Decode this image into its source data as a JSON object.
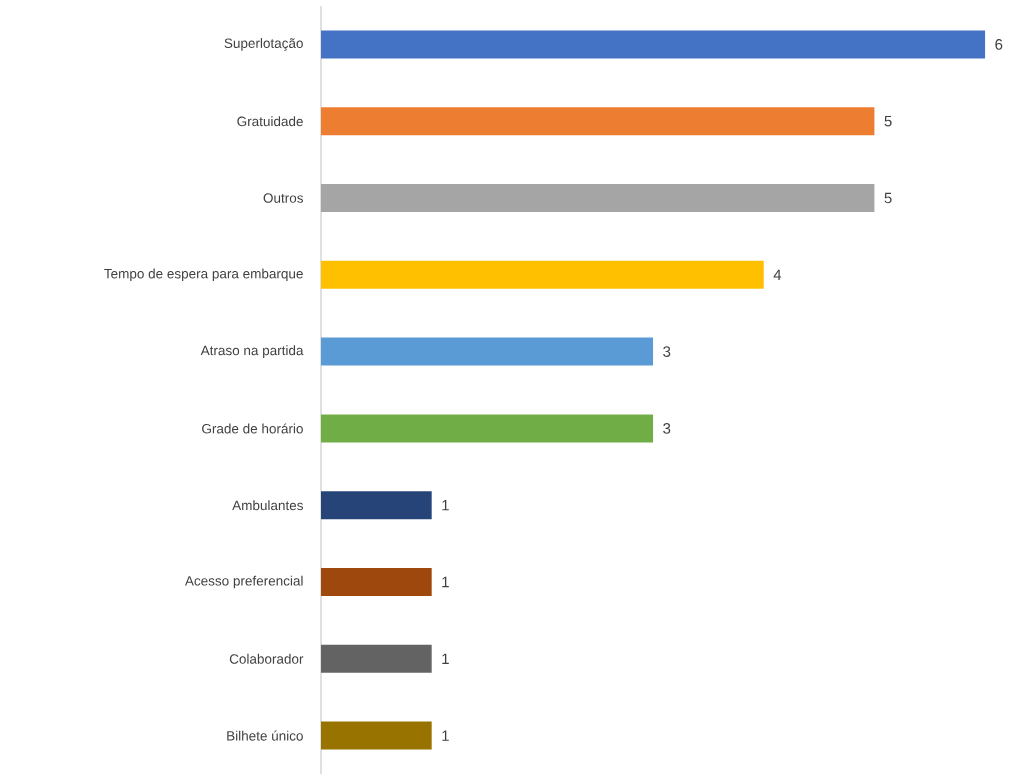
{
  "chart_data": {
    "type": "bar",
    "orientation": "horizontal",
    "categories": [
      "Superlotação",
      "Gratuidade",
      "Outros",
      "Tempo de espera para embarque",
      "Atraso na partida",
      "Grade de horário",
      "Ambulantes",
      "Acesso preferencial",
      "Colaborador",
      "Bilhete único"
    ],
    "values": [
      6,
      5,
      5,
      4,
      3,
      3,
      1,
      1,
      1,
      1
    ],
    "colors": [
      "#4472c4",
      "#ed7d31",
      "#a5a5a5",
      "#ffc000",
      "#5b9bd5",
      "#70ad47",
      "#264478",
      "#9e480e",
      "#636363",
      "#997300"
    ],
    "data_labels": true
  }
}
